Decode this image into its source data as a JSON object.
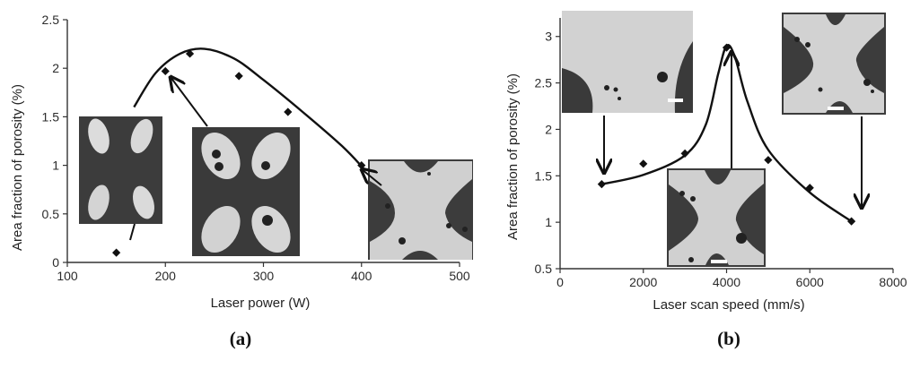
{
  "chart_data": [
    {
      "type": "scatter",
      "panel_label": "(a)",
      "xlabel": "Laser power (W)",
      "ylabel": "Area fraction of porosity (%)",
      "xlim": [
        100,
        500
      ],
      "ylim": [
        0,
        2.5
      ],
      "xticks": [
        "100",
        "200",
        "300",
        "400",
        "500"
      ],
      "yticks": [
        "0",
        "0.5",
        "1",
        "1.5",
        "2",
        "2.5"
      ],
      "grid": false,
      "legend": "none",
      "series": [
        {
          "marker": "diamond",
          "color": "#111111",
          "x": [
            150,
            200,
            225,
            275,
            325,
            400
          ],
          "y": [
            0.1,
            1.97,
            2.15,
            1.92,
            1.55,
            1.0
          ]
        }
      ],
      "trend_curve": {
        "x": [
          168,
          190,
          215,
          240,
          270,
          300,
          340,
          380,
          402
        ],
        "y": [
          1.6,
          1.95,
          2.15,
          2.2,
          2.1,
          1.88,
          1.55,
          1.2,
          0.97
        ]
      },
      "insets": [
        "four separated melt pools, no pores",
        "four melt pools with pores",
        "connected melt pools"
      ]
    },
    {
      "type": "scatter",
      "panel_label": "(b)",
      "xlabel": "Laser scan speed  (mm/s)",
      "ylabel": "Area fraction of porosity (%)",
      "xlim": [
        0,
        8000
      ],
      "ylim": [
        0.5,
        3.2
      ],
      "xticks": [
        "0",
        "2000",
        "4000",
        "6000",
        "8000"
      ],
      "yticks": [
        "0.5",
        "1",
        "1.5",
        "2",
        "2.5",
        "3"
      ],
      "grid": false,
      "legend": "none",
      "series": [
        {
          "marker": "diamond",
          "color": "#111111",
          "x": [
            1000,
            2000,
            3000,
            4000,
            5000,
            6000,
            7000
          ],
          "y": [
            1.41,
            1.63,
            1.74,
            2.88,
            1.67,
            1.37,
            1.01
          ]
        }
      ],
      "trend_curve": {
        "x": [
          1000,
          2000,
          3000,
          3500,
          3800,
          4000,
          4200,
          4500,
          5000,
          6000,
          7000
        ],
        "y": [
          1.41,
          1.51,
          1.72,
          2.05,
          2.6,
          2.9,
          2.78,
          2.3,
          1.78,
          1.32,
          1.01
        ]
      },
      "insets": [
        "large connected melt pool with pores",
        "X-shaped melt pool with pores",
        "connected melt pools with pores"
      ]
    }
  ]
}
